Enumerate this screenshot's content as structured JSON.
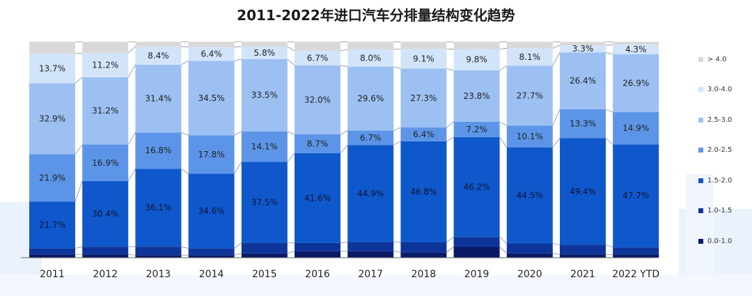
{
  "chart_data": {
    "type": "bar",
    "stacked": true,
    "percent": true,
    "title": "2011-2022年进口汽车分排量结构变化趋势",
    "categories": [
      "2011",
      "2012",
      "2013",
      "2014",
      "2015",
      "2016",
      "2017",
      "2018",
      "2019",
      "2020",
      "2021",
      "2022 YTD"
    ],
    "series": [
      {
        "name": "0.0-1.0",
        "color": "#0a1a66",
        "values": [
          1.5,
          1.5,
          1.2,
          1.2,
          2.0,
          3.0,
          3.0,
          2.5,
          5.0,
          2.0,
          1.5,
          1.5
        ]
      },
      {
        "name": "1.0-1.5",
        "color": "#0d3599",
        "values": [
          2.8,
          3.6,
          3.9,
          3.1,
          4.9,
          3.8,
          4.3,
          4.6,
          4.6,
          4.6,
          4.5,
          3.3
        ]
      },
      {
        "name": "1.5-2.0",
        "color": "#0f58cc",
        "values": [
          21.7,
          30.4,
          36.1,
          34.6,
          37.5,
          41.6,
          44.9,
          46.8,
          46.2,
          44.5,
          49.4,
          47.7
        ]
      },
      {
        "name": "2.0-2.5",
        "color": "#5c95e8",
        "values": [
          21.9,
          16.9,
          16.8,
          17.8,
          14.1,
          8.7,
          6.7,
          6.4,
          7.2,
          10.1,
          13.3,
          14.9
        ]
      },
      {
        "name": "2.5-3.0",
        "color": "#9cc0f2",
        "values": [
          32.9,
          31.2,
          31.4,
          34.5,
          33.5,
          32.0,
          29.6,
          27.3,
          23.8,
          27.7,
          26.4,
          26.9
        ]
      },
      {
        "name": "3.0-4.0",
        "color": "#d2e4fa",
        "values": [
          13.7,
          11.2,
          8.4,
          6.4,
          5.8,
          6.7,
          8.0,
          9.1,
          9.8,
          8.1,
          3.3,
          4.3
        ]
      },
      {
        "name": "> 4.0",
        "color": "#d9d9d9",
        "values": [
          5.5,
          5.2,
          2.2,
          2.4,
          2.2,
          4.2,
          3.5,
          3.3,
          3.4,
          3.0,
          1.6,
          1.4
        ]
      }
    ],
    "labels": {
      "1.5-2.0": [
        "21.7%",
        "30.4%",
        "36.1%",
        "34.6%",
        "37.5%",
        "41.6%",
        "44.9%",
        "46.8%",
        "46.2%",
        "44.5%",
        "49.4%",
        "47.7%"
      ],
      "2.0-2.5": [
        "21.9%",
        "16.9%",
        "16.8%",
        "17.8%",
        "14.1%",
        "8.7%",
        "6.7%",
        "6.4%",
        "7.2%",
        "10.1%",
        "13.3%",
        "14.9%"
      ],
      "2.5-3.0": [
        "32.9%",
        "31.2%",
        "31.4%",
        "34.5%",
        "33.5%",
        "32.0%",
        "29.6%",
        "27.3%",
        "23.8%",
        "27.7%",
        "26.4%",
        "26.9%"
      ],
      "3.0-4.0": [
        "13.7%",
        "11.2%",
        "8.4%",
        "6.4%",
        "5.8%",
        "6.7%",
        "8.0%",
        "9.1%",
        "9.8%",
        "8.1%",
        "3.3%",
        "4.3%"
      ]
    },
    "ylim": [
      0,
      100
    ],
    "legend_position": "right",
    "legend_order": [
      "> 4.0",
      "3.0-4.0",
      "2.5-3.0",
      "2.0-2.5",
      "1.5-2.0",
      "1.0-1.5",
      "0.0-1.0"
    ],
    "connector_lines": true
  }
}
